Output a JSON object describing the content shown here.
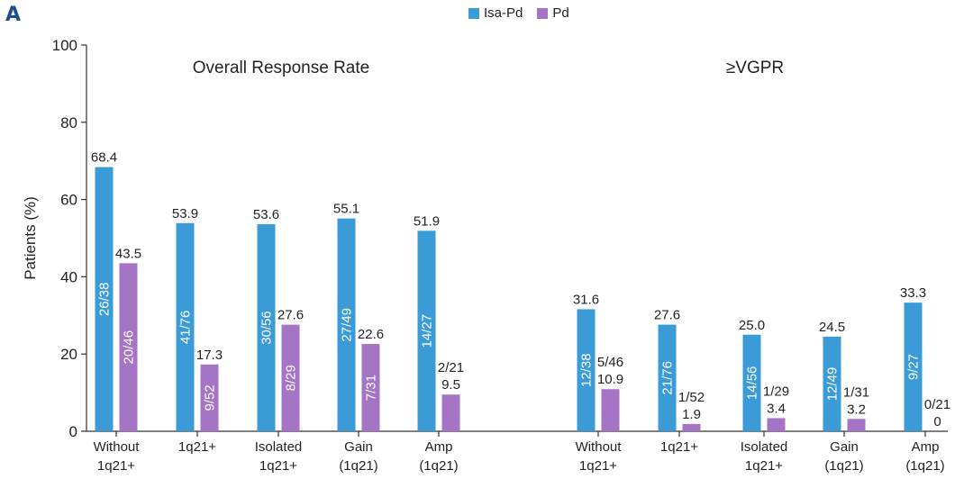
{
  "panel_label": "A",
  "chart_data": {
    "type": "bar",
    "ylabel": "Patients (%)",
    "ylim": [
      0,
      100
    ],
    "yticks": [
      0,
      20,
      40,
      60,
      80,
      100
    ],
    "grid": false,
    "legend_position": "top-center",
    "series_names": [
      "Isa-Pd",
      "Pd"
    ],
    "colors": {
      "Isa-Pd": "#3b9bd6",
      "Pd": "#a574c4"
    },
    "panels": [
      {
        "title": "Overall Response Rate",
        "categories": [
          "Without 1q21+",
          "1q21+",
          "Isolated 1q21+",
          "Gain (1q21)",
          "Amp (1q21)"
        ],
        "series": [
          {
            "name": "Isa-Pd",
            "values": [
              68.4,
              53.9,
              53.6,
              55.1,
              51.9
            ],
            "labels": [
              "68.4",
              "53.9",
              "53.6",
              "55.1",
              "51.9"
            ],
            "fractions": [
              "26/38",
              "41/76",
              "30/56",
              "27/49",
              "14/27"
            ]
          },
          {
            "name": "Pd",
            "values": [
              43.5,
              17.3,
              27.6,
              22.6,
              9.5
            ],
            "labels": [
              "43.5",
              "17.3",
              "27.6",
              "22.6",
              "9.5"
            ],
            "fractions": [
              "20/46",
              "9/52",
              "8/29",
              "7/31",
              "2/21"
            ]
          }
        ]
      },
      {
        "title": "≥VGPR",
        "categories": [
          "Without 1q21+",
          "1q21+",
          "Isolated 1q21+",
          "Gain (1q21)",
          "Amp (1q21)"
        ],
        "series": [
          {
            "name": "Isa-Pd",
            "values": [
              31.6,
              27.6,
              25.0,
              24.5,
              33.3
            ],
            "labels": [
              "31.6",
              "27.6",
              "25.0",
              "24.5",
              "33.3"
            ],
            "fractions": [
              "12/38",
              "21/76",
              "14/56",
              "12/49",
              "9/27"
            ]
          },
          {
            "name": "Pd",
            "values": [
              10.9,
              1.9,
              3.4,
              3.2,
              0
            ],
            "labels": [
              "10.9",
              "1.9",
              "3.4",
              "3.2",
              "0"
            ],
            "fractions": [
              "5/46",
              "1/52",
              "1/29",
              "1/31",
              "0/21"
            ]
          }
        ]
      }
    ]
  }
}
